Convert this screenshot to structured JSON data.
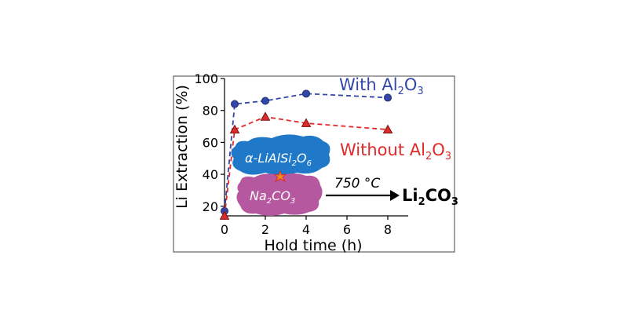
{
  "chart_data": {
    "type": "line",
    "x": [
      0,
      0.5,
      2,
      4,
      8
    ],
    "xlabel": "Hold time (h)",
    "ylabel": "Li Extraction (%)",
    "xlim": [
      0,
      9
    ],
    "ylim": [
      14,
      100
    ],
    "xticks": [
      "0",
      "2",
      "4",
      "6",
      "8"
    ],
    "yticks": [
      "20",
      "40",
      "60",
      "80",
      "100"
    ],
    "series": [
      {
        "name": "With Al2O3",
        "marker": "circle",
        "values": [
          17,
          84,
          86,
          90.5,
          88
        ]
      },
      {
        "name": "Without Al2O3",
        "marker": "triangle",
        "values": [
          14,
          68,
          76,
          72,
          68
        ]
      }
    ],
    "legend": {
      "with_main": "With Al",
      "with_sub1": "2",
      "with_o": "O",
      "with_sub2": "3",
      "without_main": "Without Al",
      "without_sub1": "2",
      "without_o": "O",
      "without_sub2": "3"
    },
    "inset": {
      "reactant1_main": "α-LiAlSi",
      "reactant1_sub1": "2",
      "reactant1_o": "O",
      "reactant1_sub2": "6",
      "reactant2_main": "Na",
      "reactant2_sub1": "2",
      "reactant2_co": "CO",
      "reactant2_sub2": "3",
      "condition": "750 °C",
      "product_main": "Li",
      "product_sub1": "2",
      "product_co": "CO",
      "product_sub2": "3"
    },
    "grid": false
  },
  "colors": {
    "with": "#3347a8",
    "without": "#e02a2a",
    "reactant1": "#1f78c8",
    "reactant2": "#b6589f",
    "axis": "#000000"
  }
}
